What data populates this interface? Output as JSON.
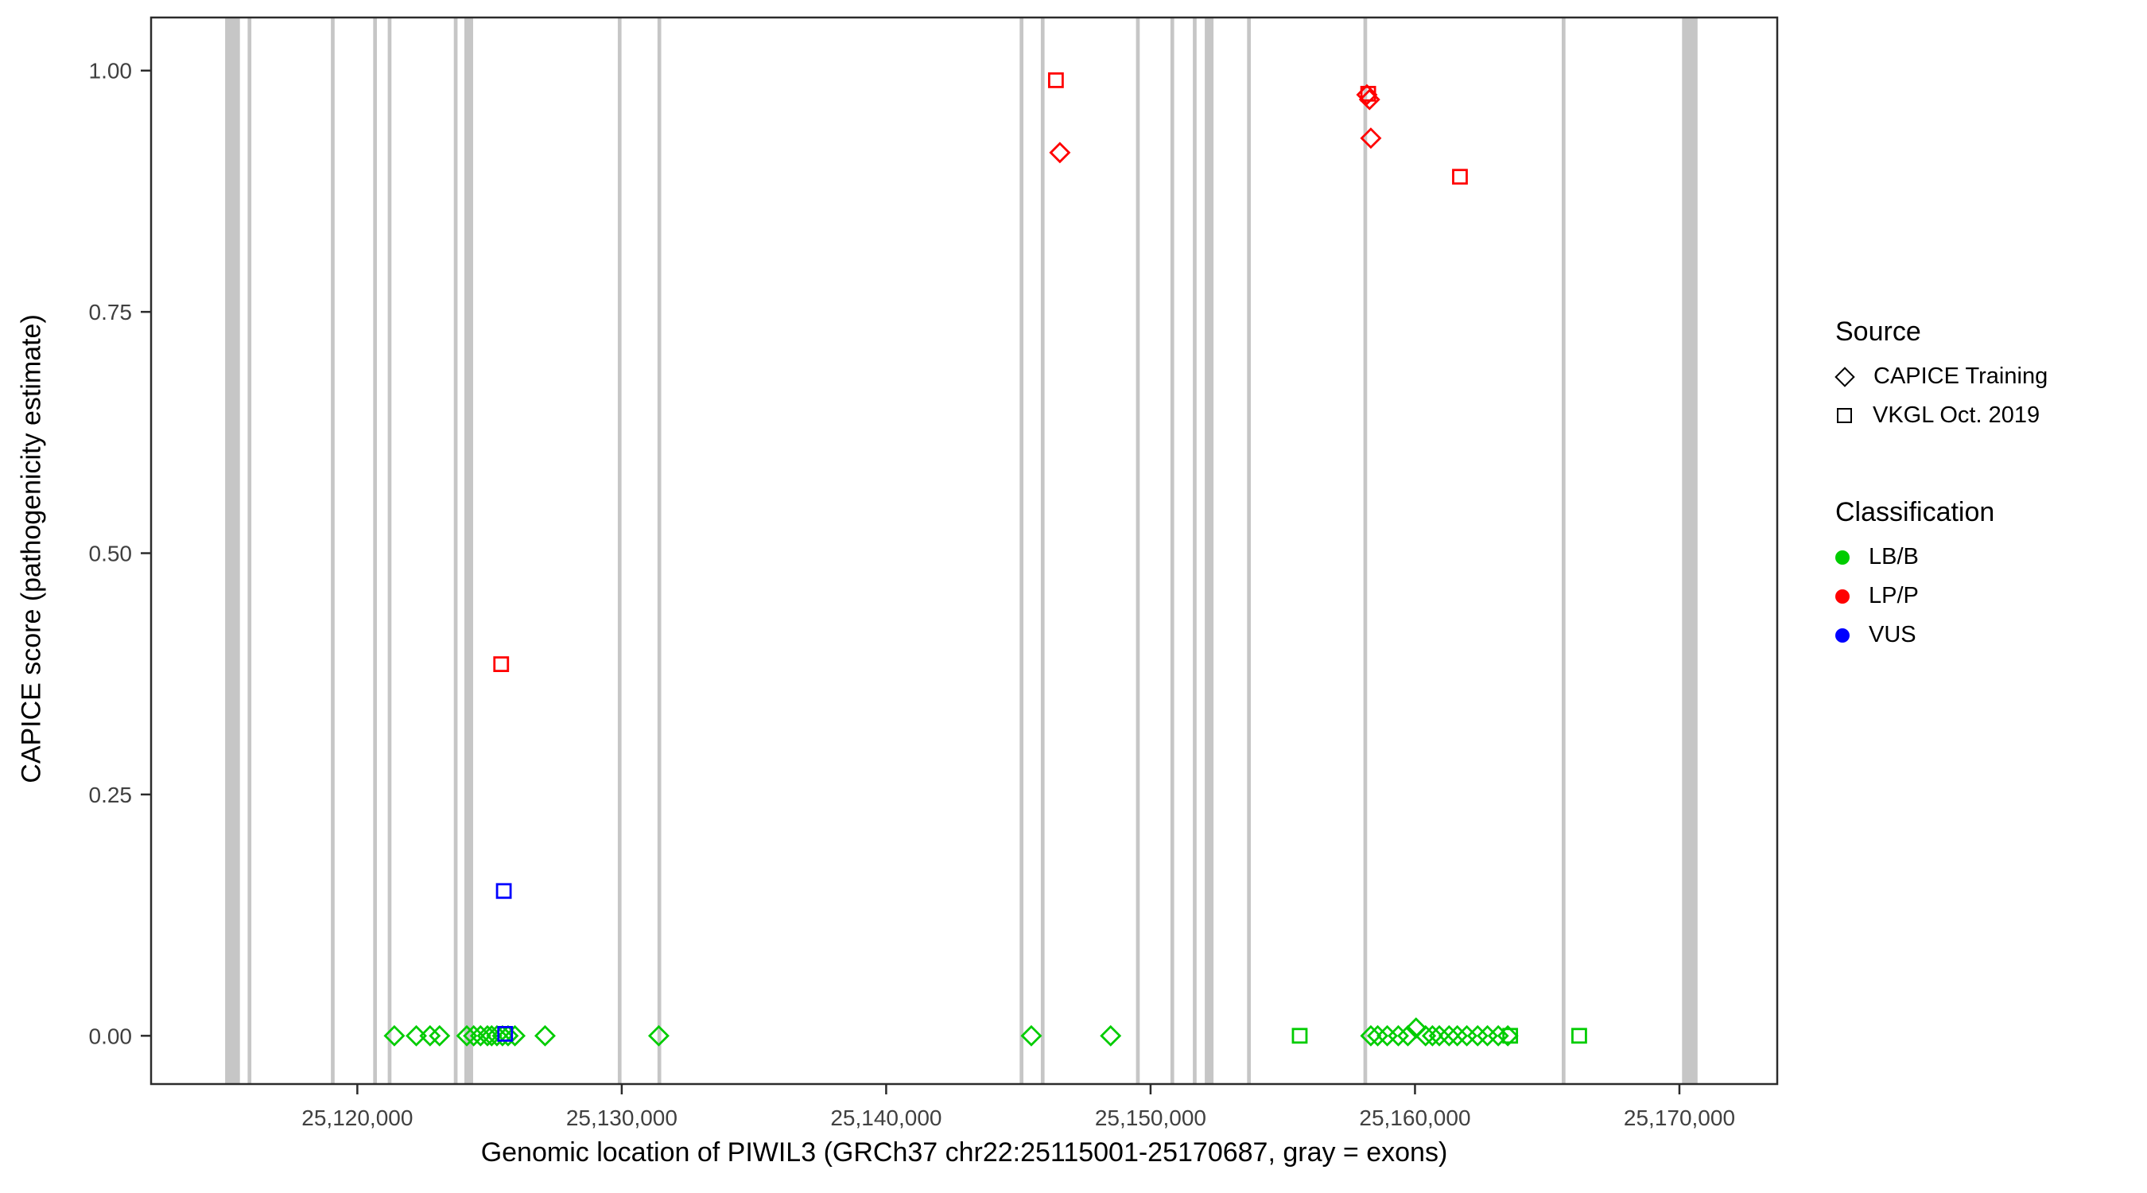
{
  "figure": {
    "x_axis_title": "Genomic location of PIWIL3 (GRCh37 chr22:25115001-25170687, gray = exons)",
    "y_axis_title": "CAPICE score (pathogenicity estimate)"
  },
  "legend": {
    "source": {
      "title": "Source",
      "items": [
        {
          "label": "CAPICE Training",
          "shape": "diamond"
        },
        {
          "label": "VKGL Oct. 2019",
          "shape": "square"
        }
      ]
    },
    "classification": {
      "title": "Classification",
      "items": [
        {
          "label": "LB/B",
          "color": "#00CC00"
        },
        {
          "label": "LP/P",
          "color": "#FF0000"
        },
        {
          "label": "VUS",
          "color": "#0000FF"
        }
      ]
    }
  },
  "chart_data": {
    "type": "scatter",
    "title": "",
    "xlabel": "Genomic location of PIWIL3 (GRCh37 chr22:25115001-25170687, gray = exons)",
    "ylabel": "CAPICE score (pathogenicity estimate)",
    "xlim": [
      25112200,
      25173700
    ],
    "ylim": [
      -0.05,
      1.055
    ],
    "grid": false,
    "legend_position": "right",
    "x_ticks": [
      25120000,
      25130000,
      25140000,
      25150000,
      25160000,
      25170000
    ],
    "x_tick_labels": [
      "25,120,000",
      "25,130,000",
      "25,140,000",
      "25,150,000",
      "25,160,000",
      "25,170,000"
    ],
    "y_ticks": [
      0,
      0.25,
      0.5,
      0.75,
      1.0
    ],
    "y_tick_labels": [
      "0.00",
      "0.25",
      "0.50",
      "0.75",
      "1.00"
    ],
    "exon_color": "#C6C6C6",
    "exons": [
      {
        "start": 25115001,
        "end": 25115560
      },
      {
        "start": 25115850,
        "end": 25115990
      },
      {
        "start": 25119000,
        "end": 25119140
      },
      {
        "start": 25120600,
        "end": 25120740
      },
      {
        "start": 25121150,
        "end": 25121290
      },
      {
        "start": 25123650,
        "end": 25123790
      },
      {
        "start": 25124050,
        "end": 25124380
      },
      {
        "start": 25129850,
        "end": 25129990
      },
      {
        "start": 25131350,
        "end": 25131490
      },
      {
        "start": 25145050,
        "end": 25145190
      },
      {
        "start": 25145850,
        "end": 25145990
      },
      {
        "start": 25149450,
        "end": 25149590
      },
      {
        "start": 25150750,
        "end": 25150890
      },
      {
        "start": 25151600,
        "end": 25151740
      },
      {
        "start": 25152050,
        "end": 25152380
      },
      {
        "start": 25153650,
        "end": 25153790
      },
      {
        "start": 25158050,
        "end": 25158190
      },
      {
        "start": 25165550,
        "end": 25165690
      },
      {
        "start": 25170100,
        "end": 25170687
      }
    ],
    "series": [
      {
        "name": "CAPICE Training / LB/B",
        "source": "CAPICE Training",
        "classification": "LB/B",
        "shape": "diamond",
        "color": "#00CC00",
        "points": [
          {
            "x": 25121400,
            "y": 0
          },
          {
            "x": 25122230,
            "y": 0
          },
          {
            "x": 25122750,
            "y": 0
          },
          {
            "x": 25123110,
            "y": 0
          },
          {
            "x": 25124140,
            "y": 0
          },
          {
            "x": 25124400,
            "y": 0
          },
          {
            "x": 25124660,
            "y": 0
          },
          {
            "x": 25124920,
            "y": 0
          },
          {
            "x": 25125080,
            "y": 0
          },
          {
            "x": 25125280,
            "y": 0
          },
          {
            "x": 25125490,
            "y": 0
          },
          {
            "x": 25125700,
            "y": 0
          },
          {
            "x": 25125960,
            "y": 0
          },
          {
            "x": 25127100,
            "y": 0
          },
          {
            "x": 25131400,
            "y": 0
          },
          {
            "x": 25145490,
            "y": 0
          },
          {
            "x": 25148490,
            "y": 0
          },
          {
            "x": 25158330,
            "y": 0
          },
          {
            "x": 25158590,
            "y": 0
          },
          {
            "x": 25158950,
            "y": 0
          },
          {
            "x": 25159370,
            "y": 0
          },
          {
            "x": 25159730,
            "y": 0
          },
          {
            "x": 25160040,
            "y": 0.008
          },
          {
            "x": 25160400,
            "y": 0
          },
          {
            "x": 25160660,
            "y": 0
          },
          {
            "x": 25160920,
            "y": 0
          },
          {
            "x": 25161290,
            "y": 0
          },
          {
            "x": 25161600,
            "y": 0
          },
          {
            "x": 25161960,
            "y": 0
          },
          {
            "x": 25162370,
            "y": 0
          },
          {
            "x": 25162740,
            "y": 0
          },
          {
            "x": 25163150,
            "y": 0
          },
          {
            "x": 25163510,
            "y": 0
          }
        ]
      },
      {
        "name": "CAPICE Training / LP/P",
        "source": "CAPICE Training",
        "classification": "LP/P",
        "shape": "diamond",
        "color": "#FF0000",
        "points": [
          {
            "x": 25146570,
            "y": 0.915
          },
          {
            "x": 25158180,
            "y": 0.975
          },
          {
            "x": 25158280,
            "y": 0.97
          },
          {
            "x": 25158330,
            "y": 0.93
          }
        ]
      },
      {
        "name": "VKGL Oct. 2019 / LB/B",
        "source": "VKGL Oct. 2019",
        "classification": "LB/B",
        "shape": "square",
        "color": "#00CC00",
        "points": [
          {
            "x": 25155640,
            "y": 0
          },
          {
            "x": 25163600,
            "y": 0
          },
          {
            "x": 25166210,
            "y": 0
          }
        ]
      },
      {
        "name": "VKGL Oct. 2019 / LP/P",
        "source": "VKGL Oct. 2019",
        "classification": "LP/P",
        "shape": "square",
        "color": "#FF0000",
        "points": [
          {
            "x": 25125440,
            "y": 0.385
          },
          {
            "x": 25146420,
            "y": 0.99
          },
          {
            "x": 25158230,
            "y": 0.976
          },
          {
            "x": 25161700,
            "y": 0.89
          }
        ]
      },
      {
        "name": "VKGL Oct. 2019 / VUS",
        "source": "VKGL Oct. 2019",
        "classification": "VUS",
        "shape": "square",
        "color": "#0000FF",
        "points": [
          {
            "x": 25125540,
            "y": 0.15
          },
          {
            "x": 25125590,
            "y": 0.002
          }
        ]
      }
    ]
  }
}
